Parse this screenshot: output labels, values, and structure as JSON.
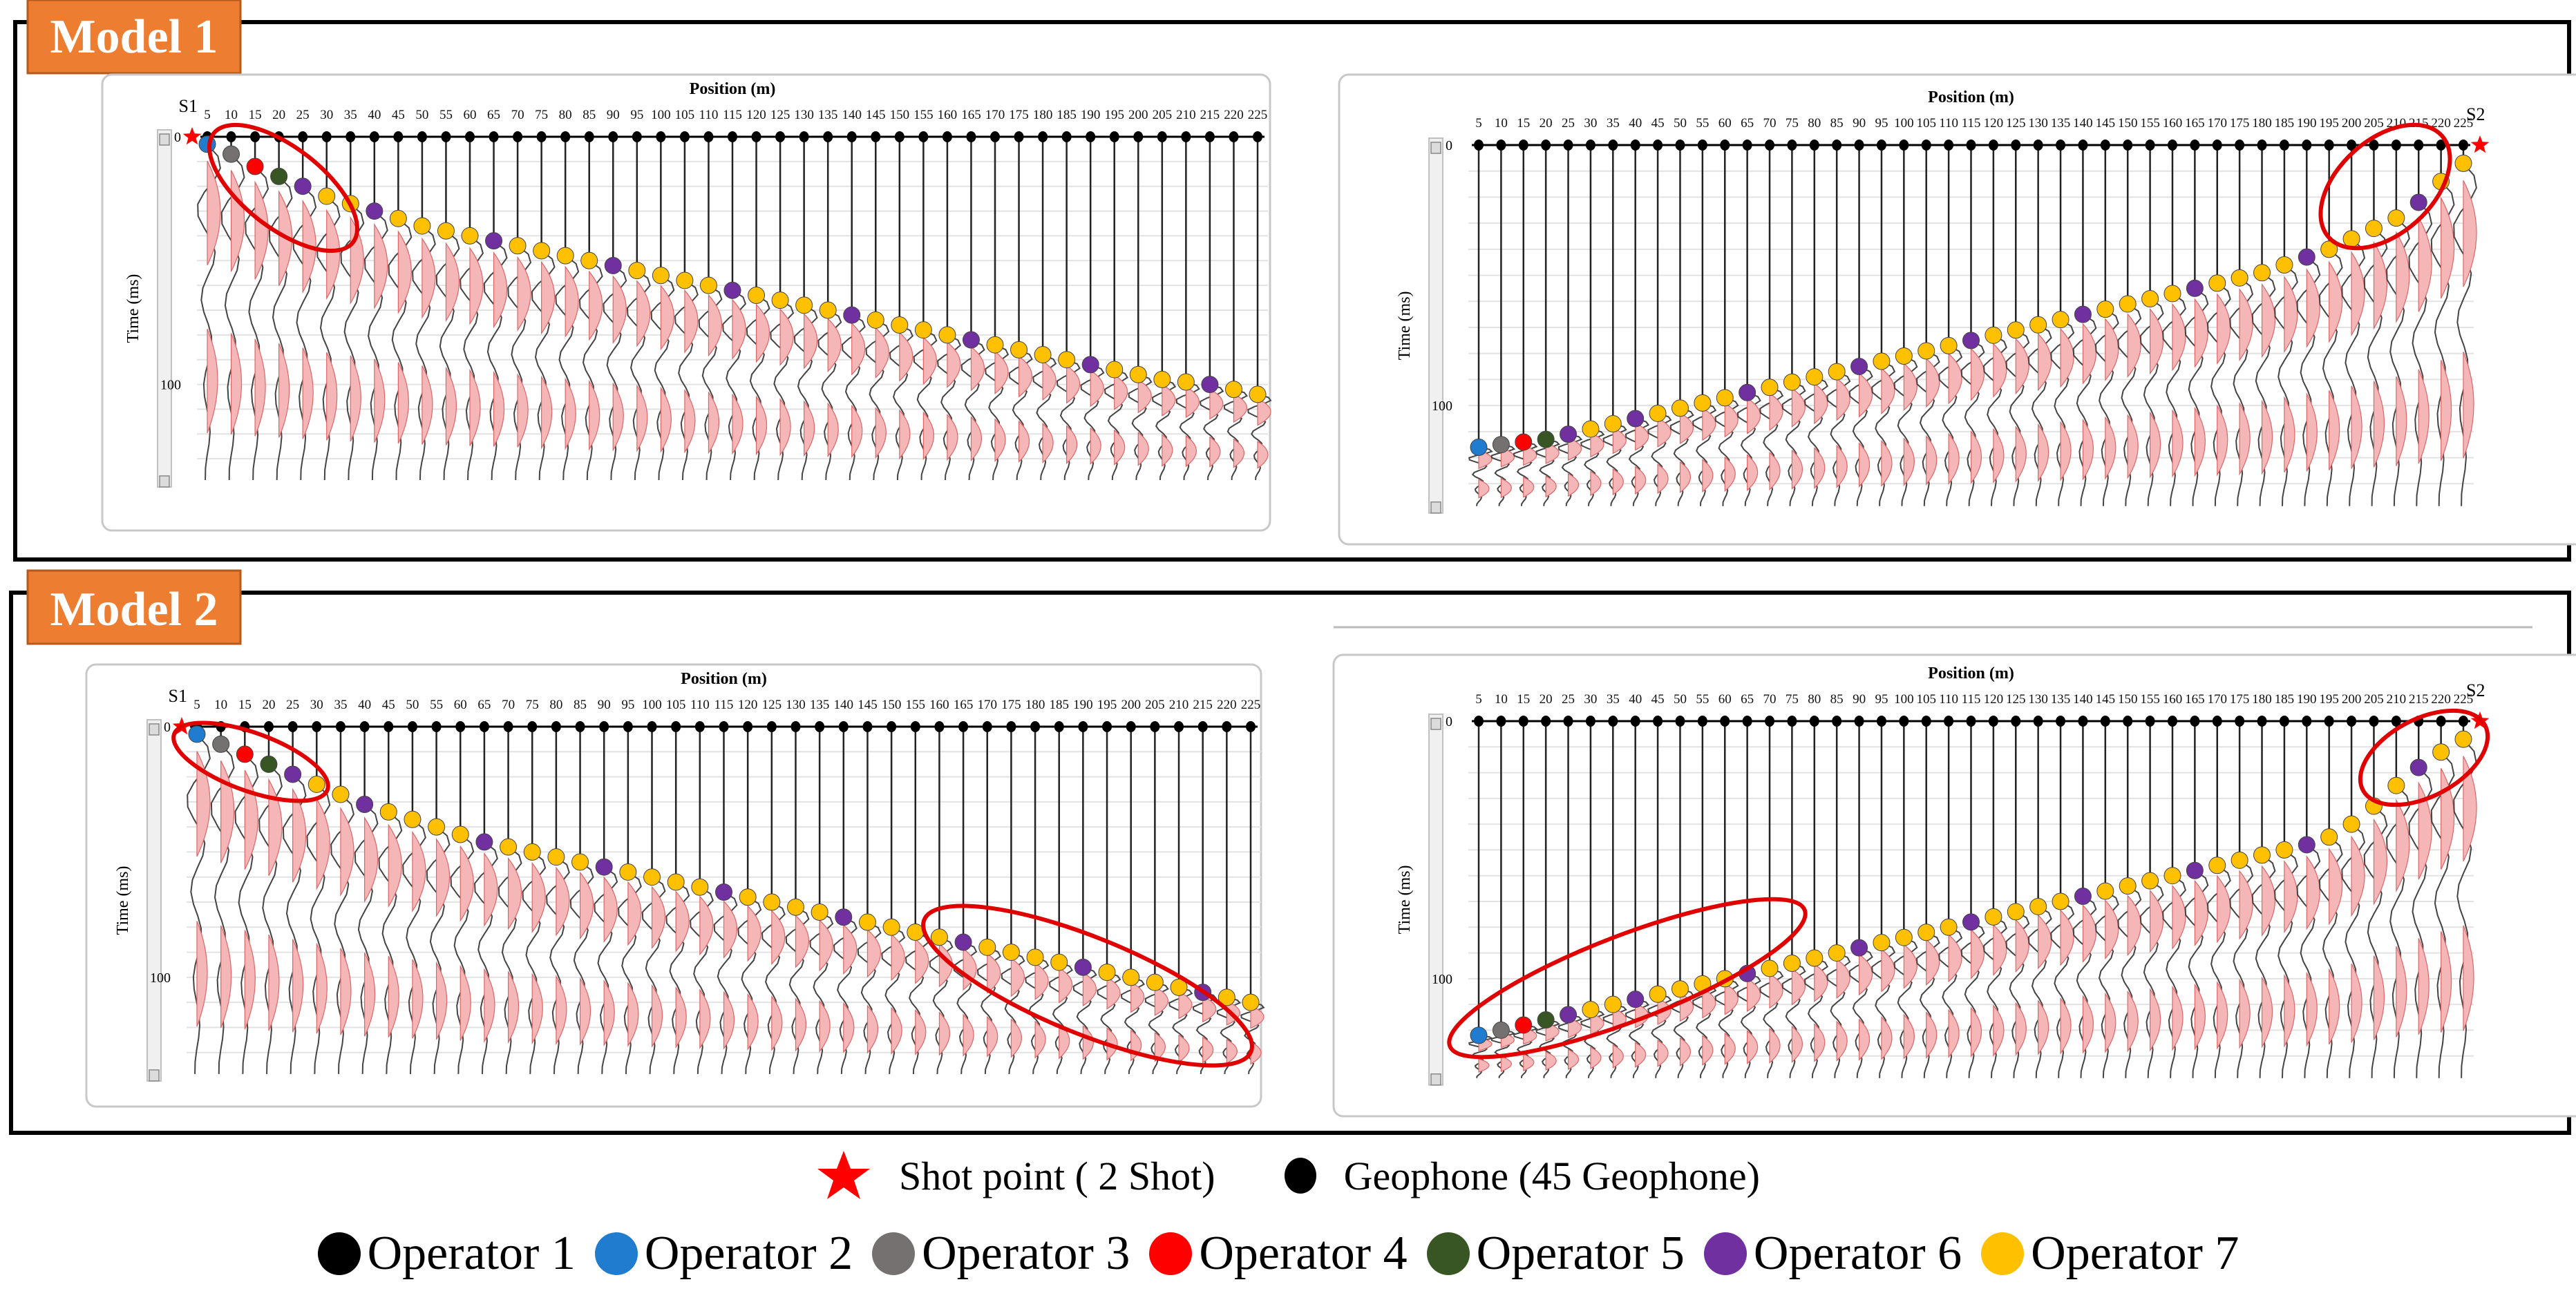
{
  "panels": [
    {
      "model_label": "Model 1",
      "shot_label": "S1",
      "shot_side": "left",
      "ytick_zero": "0",
      "ytick_100": "100"
    },
    {
      "model_label": "",
      "shot_label": "S2",
      "shot_side": "right",
      "ytick_zero": "0",
      "ytick_100": "100"
    },
    {
      "model_label": "Model 2",
      "shot_label": "S1",
      "shot_side": "left",
      "ytick_zero": "0",
      "ytick_100": "100"
    },
    {
      "model_label": "",
      "shot_label": "S2",
      "shot_side": "right",
      "ytick_zero": "0",
      "ytick_100": "100"
    }
  ],
  "axis": {
    "xlabel": "Position (m)",
    "ylabel": "Time (ms)"
  },
  "legend_top": [
    {
      "label": "Shot point ( 2 Shot)",
      "symbol": "star",
      "color": "#ff0000"
    },
    {
      "label": "Geophone (45 Geophone)",
      "symbol": "dot",
      "color": "#000000"
    }
  ],
  "legend_operators": [
    {
      "label": "Operator 1",
      "color": "#000000"
    },
    {
      "label": "Operator 2",
      "color": "#1f7ccf"
    },
    {
      "label": "Operator 3",
      "color": "#767171"
    },
    {
      "label": "Operator 4",
      "color": "#ff0000"
    },
    {
      "label": "Operator 5",
      "color": "#375623"
    },
    {
      "label": "Operator 6",
      "color": "#7030a0"
    },
    {
      "label": "Operator 7",
      "color": "#ffc000"
    }
  ],
  "chart_data": [
    {
      "type": "scatter",
      "title": "Model 1 - S1",
      "xlabel": "Position (m)",
      "ylabel": "Time (ms)",
      "x": [
        5,
        10,
        15,
        20,
        25,
        30,
        35,
        40,
        45,
        50,
        55,
        60,
        65,
        70,
        75,
        80,
        85,
        90,
        95,
        100,
        105,
        110,
        115,
        120,
        125,
        130,
        135,
        140,
        145,
        150,
        155,
        160,
        165,
        170,
        175,
        180,
        185,
        190,
        195,
        200,
        205,
        210,
        215,
        220,
        225
      ],
      "y": [
        3,
        7,
        12,
        16,
        20,
        24,
        27,
        30,
        33,
        36,
        38,
        40,
        42,
        44,
        46,
        48,
        50,
        52,
        54,
        56,
        58,
        60,
        62,
        64,
        66,
        68,
        70,
        72,
        74,
        76,
        78,
        80,
        82,
        84,
        86,
        88,
        90,
        92,
        94,
        96,
        98,
        99,
        100,
        102,
        104
      ]
    },
    {
      "type": "scatter",
      "title": "Model 1 - S2",
      "xlabel": "Position (m)",
      "ylabel": "Time (ms)",
      "x": [
        5,
        10,
        15,
        20,
        25,
        30,
        35,
        40,
        45,
        50,
        55,
        60,
        65,
        70,
        75,
        80,
        85,
        90,
        95,
        100,
        105,
        110,
        115,
        120,
        125,
        130,
        135,
        140,
        145,
        150,
        155,
        160,
        165,
        170,
        175,
        180,
        185,
        190,
        195,
        200,
        205,
        210,
        215,
        220,
        225
      ],
      "y": [
        116,
        115,
        114,
        113,
        111,
        109,
        107,
        105,
        103,
        101,
        99,
        97,
        95,
        93,
        91,
        89,
        87,
        85,
        83,
        81,
        79,
        77,
        75,
        73,
        71,
        69,
        67,
        65,
        63,
        61,
        59,
        57,
        55,
        53,
        51,
        49,
        46,
        43,
        40,
        36,
        32,
        28,
        22,
        14,
        7
      ]
    },
    {
      "type": "scatter",
      "title": "Model 2 - S1",
      "xlabel": "Position (m)",
      "ylabel": "Time (ms)",
      "x": [
        5,
        10,
        15,
        20,
        25,
        30,
        35,
        40,
        45,
        50,
        55,
        60,
        65,
        70,
        75,
        80,
        85,
        90,
        95,
        100,
        105,
        110,
        115,
        120,
        125,
        130,
        135,
        140,
        145,
        150,
        155,
        160,
        165,
        170,
        175,
        180,
        185,
        190,
        195,
        200,
        205,
        210,
        215,
        220,
        225
      ],
      "y": [
        3,
        7,
        11,
        15,
        19,
        23,
        27,
        31,
        34,
        37,
        40,
        43,
        46,
        48,
        50,
        52,
        54,
        56,
        58,
        60,
        62,
        64,
        66,
        68,
        70,
        72,
        74,
        76,
        78,
        80,
        82,
        84,
        86,
        88,
        90,
        92,
        94,
        96,
        98,
        100,
        102,
        104,
        106,
        108,
        110
      ]
    },
    {
      "type": "scatter",
      "title": "Model 2 - S2",
      "xlabel": "Position (m)",
      "ylabel": "Time (ms)",
      "x": [
        5,
        10,
        15,
        20,
        25,
        30,
        35,
        40,
        45,
        50,
        55,
        60,
        65,
        70,
        75,
        80,
        85,
        90,
        95,
        100,
        105,
        110,
        115,
        120,
        125,
        130,
        135,
        140,
        145,
        150,
        155,
        160,
        165,
        170,
        175,
        180,
        185,
        190,
        195,
        200,
        205,
        210,
        215,
        220,
        225
      ],
      "y": [
        122,
        120,
        118,
        116,
        114,
        112,
        110,
        108,
        106,
        104,
        102,
        100,
        98,
        96,
        94,
        92,
        90,
        88,
        86,
        84,
        82,
        80,
        78,
        76,
        74,
        72,
        70,
        68,
        66,
        64,
        62,
        60,
        58,
        56,
        54,
        52,
        50,
        48,
        45,
        40,
        33,
        25,
        18,
        12,
        7
      ]
    }
  ]
}
